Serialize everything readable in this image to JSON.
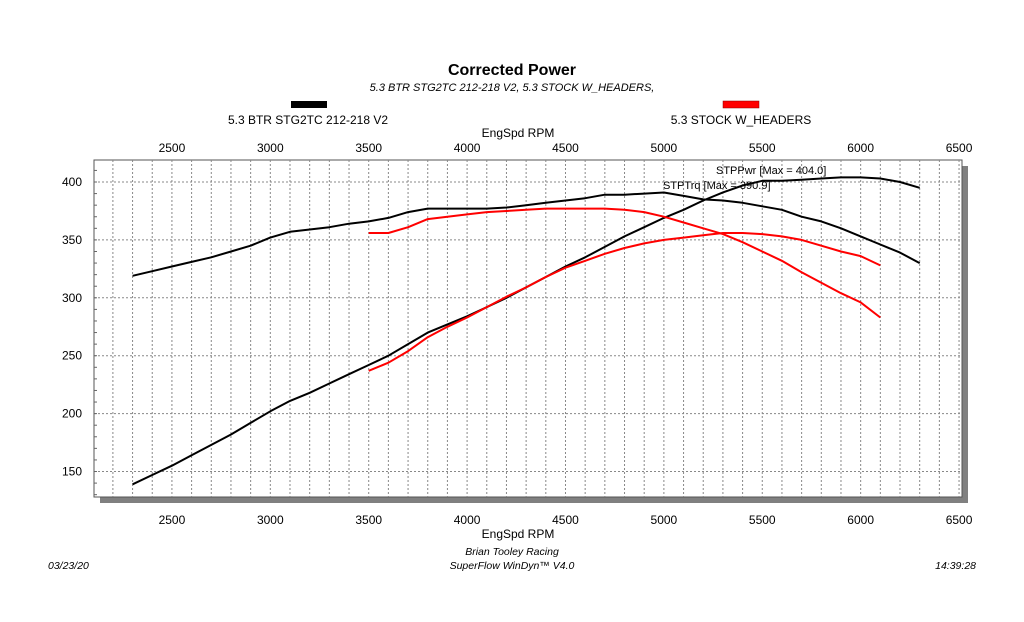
{
  "chart_data": {
    "type": "line",
    "title": "Corrected Power",
    "subtitle": "5.3 BTR STG2TC 212-218 V2, 5.3 STOCK W_HEADERS,",
    "xlabel": "EngSpd RPM",
    "xlim": [
      2104,
      6515
    ],
    "ylim": [
      128,
      419
    ],
    "xticks": [
      2500,
      3000,
      3500,
      4000,
      4500,
      5000,
      5500,
      6000,
      6500
    ],
    "yticks": [
      150,
      200,
      250,
      300,
      350,
      400
    ],
    "grid": true,
    "legend": [
      {
        "name": "5.3 BTR STG2TC 212-218 V2",
        "color": "#000000"
      },
      {
        "name": "5.3 STOCK W_HEADERS",
        "color": "#ff0000"
      }
    ],
    "annotations": [
      "STPPwr [Max = 404.0]",
      "STPTrq [Max = 390.9]"
    ],
    "series": [
      {
        "name": "5.3 BTR STG2TC 212-218 V2 STPTrq",
        "color": "#000000",
        "x": [
          2300,
          2400,
          2500,
          2600,
          2700,
          2800,
          2900,
          3000,
          3100,
          3200,
          3300,
          3400,
          3500,
          3600,
          3700,
          3800,
          3900,
          4000,
          4100,
          4200,
          4300,
          4400,
          4500,
          4600,
          4700,
          4800,
          4900,
          5000,
          5100,
          5200,
          5300,
          5400,
          5500,
          5600,
          5700,
          5800,
          5900,
          6000,
          6100,
          6200,
          6300
        ],
        "values": [
          319,
          323,
          327,
          331,
          335,
          340,
          345,
          352,
          357,
          359,
          361,
          364,
          366,
          369,
          374,
          377,
          377,
          377,
          377,
          378,
          380,
          382,
          384,
          386,
          389,
          389,
          390,
          390.9,
          388,
          385,
          384,
          382,
          379,
          376,
          370,
          366,
          360,
          353,
          346,
          339,
          330
        ]
      },
      {
        "name": "5.3 BTR STG2TC 212-218 V2 STPPwr",
        "color": "#000000",
        "x": [
          2300,
          2400,
          2500,
          2600,
          2700,
          2800,
          2900,
          3000,
          3100,
          3200,
          3300,
          3400,
          3500,
          3600,
          3700,
          3800,
          3900,
          4000,
          4100,
          4200,
          4300,
          4400,
          4500,
          4600,
          4700,
          4800,
          4900,
          5000,
          5100,
          5200,
          5300,
          5400,
          5500,
          5600,
          5700,
          5800,
          5900,
          6000,
          6100,
          6200,
          6300
        ],
        "values": [
          139,
          147,
          155,
          164,
          173,
          182,
          192,
          202,
          211,
          218,
          226,
          234,
          242,
          250,
          260,
          270,
          277,
          284,
          292,
          300,
          309,
          318,
          327,
          335,
          344,
          353,
          361,
          369,
          376,
          384,
          391,
          397,
          401,
          401,
          402,
          403,
          404,
          404,
          403,
          400,
          395
        ]
      },
      {
        "name": "5.3 STOCK W_HEADERS STPTrq",
        "color": "#ff0000",
        "x": [
          3500,
          3600,
          3700,
          3800,
          3900,
          4000,
          4100,
          4200,
          4300,
          4400,
          4500,
          4600,
          4700,
          4800,
          4900,
          5000,
          5100,
          5200,
          5300,
          5400,
          5500,
          5600,
          5700,
          5800,
          5900,
          6000,
          6100
        ],
        "values": [
          356,
          356,
          361,
          368,
          370,
          372,
          374,
          375,
          376,
          377,
          377,
          377,
          377,
          376,
          374,
          370,
          365,
          360,
          355,
          348,
          340,
          332,
          322,
          313,
          304,
          296,
          283
        ]
      },
      {
        "name": "5.3 STOCK W_HEADERS STPPwr",
        "color": "#ff0000",
        "x": [
          3500,
          3600,
          3700,
          3800,
          3900,
          4000,
          4100,
          4200,
          4300,
          4400,
          4500,
          4600,
          4700,
          4800,
          4900,
          5000,
          5100,
          5200,
          5300,
          5400,
          5500,
          5600,
          5700,
          5800,
          5900,
          6000,
          6100
        ],
        "values": [
          237,
          244,
          254,
          266,
          275,
          283,
          292,
          301,
          309,
          318,
          326,
          332,
          338,
          343,
          347,
          350,
          352,
          354,
          356,
          356,
          355,
          353,
          350,
          345,
          340,
          336,
          328
        ]
      }
    ]
  },
  "footer": {
    "company": "Brian Tooley Racing",
    "software": "SuperFlow WinDyn™ V4.0",
    "date": "03/23/20",
    "time": "14:39:28"
  }
}
